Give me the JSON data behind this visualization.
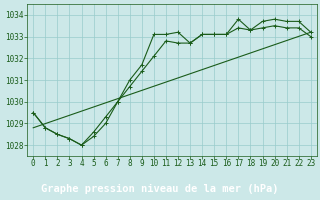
{
  "title": "Graphe pression niveau de la mer (hPa)",
  "bg_color": "#cce8e8",
  "plot_bg_color": "#cce8e8",
  "bottom_bar_color": "#2d6b2d",
  "line_color": "#1a5c1a",
  "grid_color": "#99cccc",
  "xlim": [
    -0.5,
    23.5
  ],
  "ylim": [
    1027.5,
    1034.5
  ],
  "xticks": [
    0,
    1,
    2,
    3,
    4,
    5,
    6,
    7,
    8,
    9,
    10,
    11,
    12,
    13,
    14,
    15,
    16,
    17,
    18,
    19,
    20,
    21,
    22,
    23
  ],
  "yticks": [
    1028,
    1029,
    1030,
    1031,
    1032,
    1033,
    1034
  ],
  "series1_x": [
    0,
    1,
    2,
    3,
    4,
    5,
    6,
    7,
    8,
    9,
    10,
    11,
    12,
    13,
    14,
    15,
    16,
    17,
    18,
    19,
    20,
    21,
    22,
    23
  ],
  "series1_y": [
    1029.5,
    1028.8,
    1028.5,
    1028.3,
    1028.0,
    1028.4,
    1029.0,
    1030.0,
    1031.0,
    1031.7,
    1033.1,
    1033.1,
    1033.2,
    1032.7,
    1033.1,
    1033.1,
    1033.1,
    1033.8,
    1033.3,
    1033.7,
    1033.8,
    1033.7,
    1033.7,
    1033.2
  ],
  "series2_x": [
    0,
    1,
    2,
    3,
    4,
    5,
    6,
    7,
    8,
    9,
    10,
    11,
    12,
    13,
    14,
    15,
    16,
    17,
    18,
    19,
    20,
    21,
    22,
    23
  ],
  "series2_y": [
    1029.5,
    1028.8,
    1028.5,
    1028.3,
    1028.0,
    1028.6,
    1029.3,
    1030.0,
    1030.7,
    1031.4,
    1032.1,
    1032.8,
    1032.7,
    1032.7,
    1033.1,
    1033.1,
    1033.1,
    1033.4,
    1033.3,
    1033.4,
    1033.5,
    1033.4,
    1033.4,
    1033.0
  ],
  "series3_x": [
    0,
    23
  ],
  "series3_y": [
    1028.8,
    1033.2
  ],
  "title_fontsize": 7.5,
  "tick_fontsize": 5.5
}
